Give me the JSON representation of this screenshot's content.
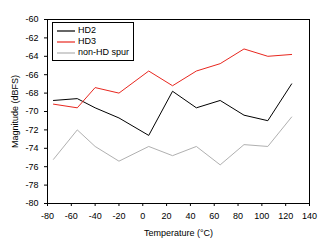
{
  "chart_data": {
    "type": "line",
    "x_label": "Temperature (°C)",
    "y_label": "Magnitude (dBFS)",
    "x": [
      -75,
      -55,
      -40,
      -20,
      5,
      25,
      45,
      65,
      85,
      105,
      125
    ],
    "series": [
      {
        "name": "HD2",
        "color": "#000000",
        "values": [
          -68.8,
          -68.6,
          -69.6,
          -70.7,
          -72.6,
          -67.8,
          -69.6,
          -68.8,
          -70.4,
          -71.0,
          -67.0
        ]
      },
      {
        "name": "HD3",
        "color": "#e8271f",
        "values": [
          -69.2,
          -69.6,
          -67.4,
          -68.0,
          -65.6,
          -67.2,
          -65.6,
          -64.8,
          -63.2,
          -64.0,
          -63.8
        ]
      },
      {
        "name": "non-HD spur",
        "color": "#b0b0b0",
        "values": [
          -75.2,
          -72.0,
          -73.8,
          -75.4,
          -73.8,
          -74.8,
          -73.8,
          -75.8,
          -73.6,
          -73.8,
          -70.6
        ]
      }
    ],
    "xlim": [
      -80,
      140
    ],
    "xticks": [
      -80,
      -60,
      -40,
      -20,
      0,
      20,
      40,
      60,
      80,
      100,
      120,
      140
    ],
    "ylim": [
      -80,
      -60
    ],
    "yticks": [
      -80,
      -78,
      -76,
      -74,
      -72,
      -70,
      -68,
      -66,
      -64,
      -62,
      -60
    ],
    "grid": false,
    "legend": "top-left"
  }
}
